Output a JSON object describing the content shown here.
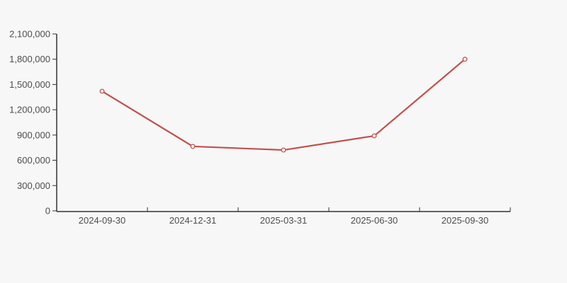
{
  "page": {
    "background_color": "#f7f7f7"
  },
  "chart_data": {
    "type": "line",
    "title": "",
    "xlabel": "",
    "ylabel": "",
    "categories": [
      "2024-09-30",
      "2024-12-31",
      "2025-03-31",
      "2025-06-30",
      "2025-09-30"
    ],
    "series": [
      {
        "name": "series-1",
        "values": [
          1420000,
          765000,
          722000,
          890000,
          1800000
        ],
        "color": "#c2504b",
        "marker": "open-circle",
        "marker_fill": "#ffffff"
      }
    ],
    "ylim": [
      0,
      2100000
    ],
    "y_tick_interval": 300000,
    "y_tick_labels": [
      "0",
      "300,000",
      "600,000",
      "900,000",
      "1,200,000",
      "1,500,000",
      "1,800,000",
      "2,100,000"
    ],
    "grid": false,
    "legend": "none",
    "axis_color": "#333333",
    "label_color": "#4d4d4d"
  }
}
